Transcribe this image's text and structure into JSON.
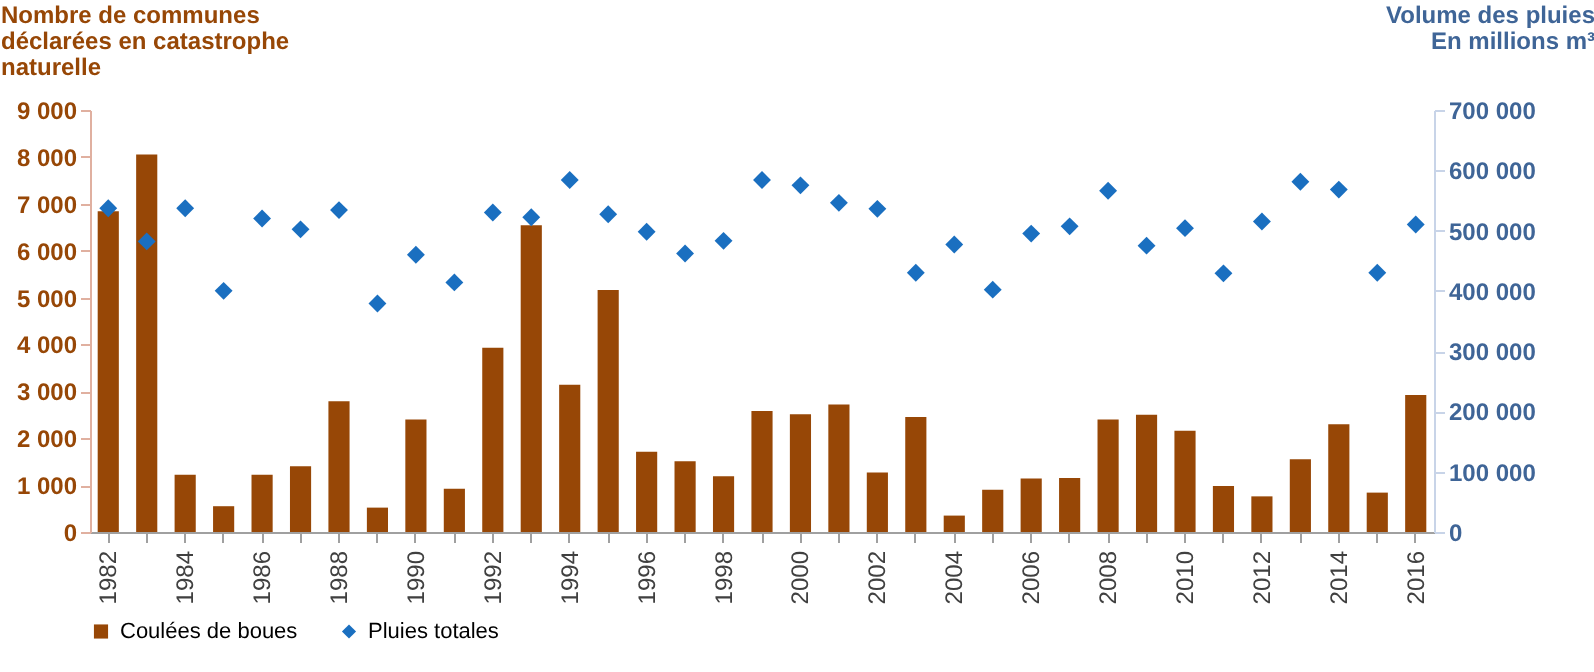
{
  "chart_data": {
    "type": "bar",
    "ylabel": "Nombre de communes\ndéclarées en catastrophe\nnaturelle",
    "y2label": "Volume des pluies\nEn millions m³",
    "categories": [
      "1982",
      null,
      "1984",
      null,
      "1986",
      null,
      "1988",
      null,
      "1990",
      null,
      "1992",
      null,
      "1994",
      null,
      "1996",
      null,
      "1998",
      null,
      "2000",
      null,
      "2002",
      null,
      "2004",
      null,
      "2006",
      null,
      "2008",
      null,
      "2010",
      null,
      "2012",
      null,
      "2014",
      null,
      "2016"
    ],
    "series": [
      {
        "name": "Coulées de boues",
        "type": "bar",
        "color": "#974706",
        "values": [
          6840,
          8050,
          1220,
          550,
          1220,
          1400,
          2790,
          520,
          2400,
          920,
          3930,
          6540,
          3140,
          5160,
          1710,
          1510,
          1190,
          2580,
          2510,
          2720,
          1270,
          2450,
          350,
          900,
          1140,
          1150,
          2400,
          2500,
          2160,
          980,
          760,
          1550,
          2300,
          840,
          2920
        ]
      },
      {
        "name": "Pluies totales",
        "type": "scatter",
        "axis": "y2",
        "color": "#1a6fc0",
        "values": [
          537000,
          482000,
          537000,
          400000,
          520000,
          502000,
          534000,
          379000,
          460000,
          414000,
          530000,
          522000,
          584000,
          527000,
          498000,
          462000,
          483000,
          584000,
          575000,
          546000,
          536000,
          430000,
          477000,
          402000,
          495000,
          507000,
          566000,
          475000,
          504000,
          429000,
          515000,
          581000,
          568000,
          430000,
          510000
        ]
      }
    ],
    "ylim": [
      0,
      9000
    ],
    "yticks": [
      0,
      {
        "value": 1000,
        "label": "1 000"
      },
      {
        "value": 2000,
        "label": "2 000"
      },
      {
        "value": 3000,
        "label": "3 000"
      },
      {
        "value": 4000,
        "label": "4 000"
      },
      {
        "value": 5000,
        "label": "5 000"
      },
      {
        "value": 6000,
        "label": "6 000"
      },
      {
        "value": 7000,
        "label": "7 000"
      },
      {
        "value": 8000,
        "label": "8 000"
      },
      {
        "value": 9000,
        "label": "9 000"
      }
    ],
    "y2lim": [
      0,
      700000
    ],
    "y2ticks": [
      0,
      {
        "value": 100000,
        "label": "100 000"
      },
      {
        "value": 200000,
        "label": "200 000"
      },
      {
        "value": 300000,
        "label": "300 000"
      },
      {
        "value": 400000,
        "label": "400 000"
      },
      {
        "value": 500000,
        "label": "500 000"
      },
      {
        "value": 600000,
        "label": "600 000"
      },
      {
        "value": 700000,
        "label": "700 000"
      }
    ],
    "marker": "diamond",
    "legend": "bottom",
    "grid": false
  }
}
